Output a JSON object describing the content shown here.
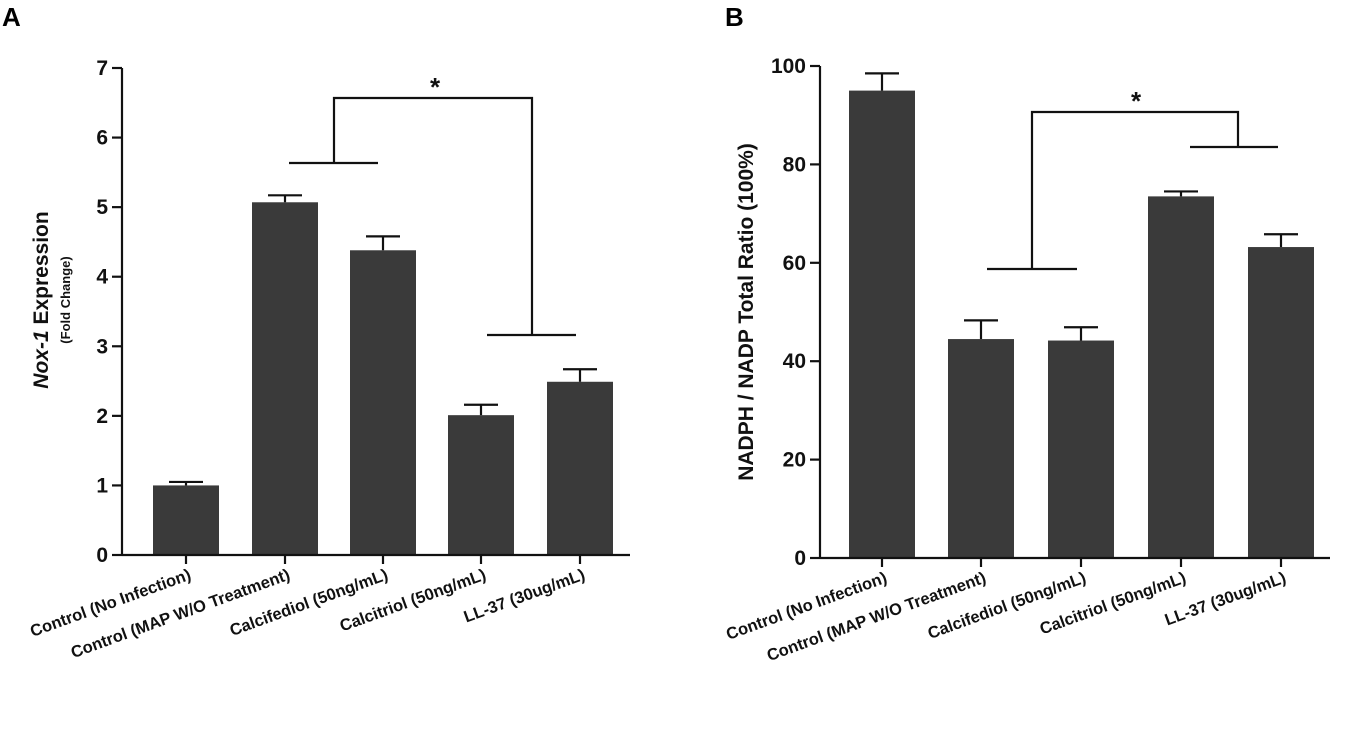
{
  "chart_data": [
    {
      "panel": "A",
      "type": "bar",
      "ylabel_italic": "Nox-1",
      "ylabel_rest": " Expression",
      "ylabel_sub": "(Fold Change)",
      "ylim": [
        0,
        7
      ],
      "yticks": [
        "0",
        "1",
        "2",
        "3",
        "4",
        "5",
        "6",
        "7"
      ],
      "categories": [
        "Control (No Infection)",
        "Control (MAP W/O Treatment)",
        "Calcifediol (50ng/mL)",
        "Calcitriol (50ng/mL)",
        "LL-37 (30ug/mL)"
      ],
      "values": [
        1.0,
        5.07,
        4.38,
        2.01,
        2.49
      ],
      "errors": [
        0.05,
        0.1,
        0.2,
        0.15,
        0.18
      ],
      "significance": {
        "label": "*",
        "from_group": [
          1,
          2
        ],
        "to_group": [
          3,
          4
        ]
      }
    },
    {
      "panel": "B",
      "type": "bar",
      "ylabel": "NADPH / NADP Total Ratio (100%)",
      "ylim": [
        0,
        100
      ],
      "yticks": [
        "0",
        "20",
        "40",
        "60",
        "80",
        "100"
      ],
      "categories": [
        "Control (No Infection)",
        "Control (MAP W/O Treatment)",
        "Calcifediol (50ng/mL)",
        "Calcitriol (50ng/mL)",
        "LL-37 (30ug/mL)"
      ],
      "values": [
        95,
        44.5,
        44.2,
        73.5,
        63.2
      ],
      "errors": [
        3.5,
        3.8,
        2.7,
        1.0,
        2.6
      ],
      "significance": {
        "label": "*",
        "from_group": [
          1,
          2
        ],
        "to_group": [
          3,
          4
        ]
      }
    }
  ]
}
